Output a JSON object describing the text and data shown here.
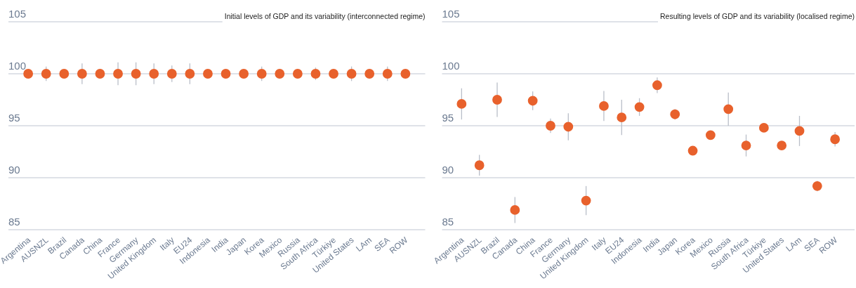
{
  "chart_data": [
    {
      "type": "scatter",
      "title": "Initial levels of GDP and its variability (interconnected regime)",
      "categories": [
        "Argentina",
        "AUSNZL",
        "Brazil",
        "Canada",
        "China",
        "France",
        "Germany",
        "United Kingdom",
        "Italy",
        "EU24",
        "Indonesia",
        "India",
        "Japan",
        "Korea",
        "Mexico",
        "Russia",
        "South Africa",
        "Türkiye",
        "United States",
        "LAm",
        "SEA",
        "ROW"
      ],
      "values": [
        100,
        100,
        100,
        100,
        100,
        100,
        100,
        100,
        100,
        100,
        100,
        100,
        100,
        100,
        100,
        100,
        100,
        100,
        100,
        100,
        100,
        100
      ],
      "errors": [
        null,
        0.7,
        null,
        1.0,
        null,
        1.1,
        1.1,
        1.0,
        0.8,
        1.0,
        null,
        null,
        null,
        0.7,
        null,
        null,
        0.6,
        null,
        0.7,
        null,
        0.7,
        null
      ],
      "color": "#e8612c",
      "marker": "circle",
      "ylim": [
        85,
        105
      ],
      "yticks": [
        85,
        90,
        95,
        100,
        105
      ],
      "grid": "y"
    },
    {
      "type": "scatter",
      "title": "Resulting levels of GDP and its variability (localised regime)",
      "categories": [
        "Argentina",
        "AUSNZL",
        "Brazil",
        "Canada",
        "China",
        "France",
        "Germany",
        "United Kingdom",
        "Italy",
        "EU24",
        "Indonesia",
        "India",
        "Japan",
        "Korea",
        "Mexico",
        "Russia",
        "South Africa",
        "Türkiye",
        "United States",
        "LAm",
        "SEA",
        "ROW"
      ],
      "values": [
        97.1,
        91.2,
        97.5,
        86.9,
        97.4,
        95.0,
        94.9,
        87.8,
        96.9,
        95.8,
        96.8,
        98.9,
        96.1,
        92.6,
        94.1,
        96.6,
        93.1,
        94.8,
        93.1,
        94.5,
        89.2,
        93.7
      ],
      "errors": [
        1.5,
        1.0,
        1.65,
        1.25,
        0.9,
        0.7,
        1.3,
        1.4,
        1.45,
        1.7,
        0.85,
        0.75,
        0.5,
        null,
        null,
        1.6,
        1.05,
        null,
        null,
        1.45,
        0.5,
        0.7
      ],
      "color": "#e8612c",
      "marker": "circle",
      "ylim": [
        85,
        105
      ],
      "yticks": [
        85,
        90,
        95,
        100,
        105
      ],
      "grid": "y"
    }
  ]
}
